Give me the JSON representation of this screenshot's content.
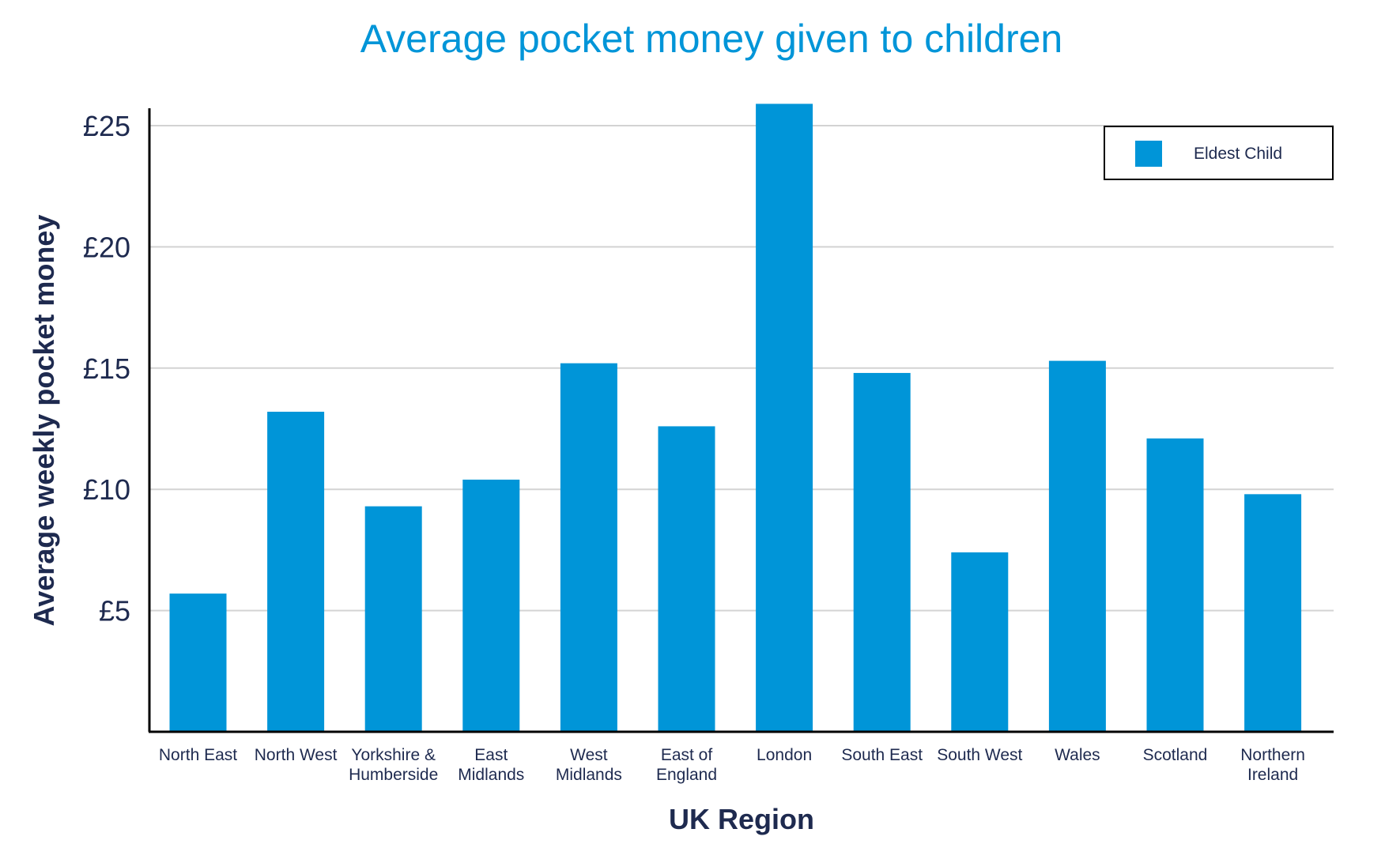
{
  "chart_data": {
    "type": "bar",
    "title": "Average pocket money given to children",
    "xlabel": "UK Region",
    "ylabel": "Average weekly pocket money",
    "categories": [
      [
        "North East"
      ],
      [
        "North West"
      ],
      [
        "Yorkshire &",
        "Humberside"
      ],
      [
        "East",
        "Midlands"
      ],
      [
        "West",
        "Midlands"
      ],
      [
        "East of",
        "England"
      ],
      [
        "London"
      ],
      [
        "South East"
      ],
      [
        "South West"
      ],
      [
        "Wales"
      ],
      [
        "Scotland"
      ],
      [
        "Northern",
        "Ireland"
      ]
    ],
    "series": [
      {
        "name": "Eldest Child",
        "color": "#0095d8",
        "values": [
          5.7,
          13.2,
          9.3,
          10.4,
          15.2,
          12.6,
          25.9,
          14.8,
          7.4,
          15.3,
          12.1,
          9.8
        ]
      }
    ],
    "ylim": [
      0,
      25.9
    ],
    "yticks": [
      5,
      10,
      15,
      20,
      25
    ],
    "ytick_labels": [
      "£5",
      "£10",
      "£15",
      "£20",
      "£25"
    ],
    "grid": true,
    "legend_position": "top-right",
    "colors": {
      "title": "#0095d8",
      "text": "#1e2a4f",
      "grid": "#d3d3d3",
      "axis": "#000000"
    }
  }
}
